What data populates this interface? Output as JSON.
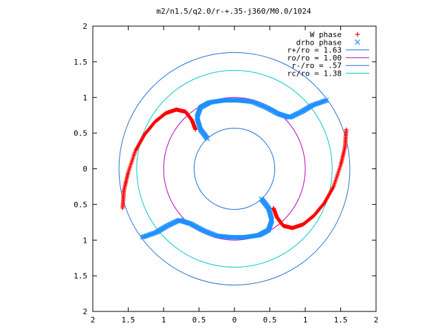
{
  "chart_data": {
    "type": "scatter",
    "title": "m2/n1.5/q2.0/r-+.35-j360/M0.0/1024",
    "xlim": [
      -2,
      2
    ],
    "ylim": [
      -2,
      2
    ],
    "x_tick_labels": [
      "2",
      "1.5",
      "1",
      "0.5",
      "0",
      "0.5",
      "1",
      "1.5",
      "2"
    ],
    "y_tick_labels": [
      "2",
      "1.5",
      "1",
      "0.5",
      "0",
      "0.5",
      "1",
      "1.5",
      "2"
    ],
    "grid": false,
    "legend_position": "top-right",
    "circles": [
      {
        "name": "r+/ro = 1.63",
        "radius": 1.63,
        "color": "#1f6fd0"
      },
      {
        "name": "ro/ro = 1.00",
        "radius": 1.0,
        "color": "#b000b0"
      },
      {
        "name": "r-/ro = .57",
        "radius": 0.57,
        "color": "#1f6fd0"
      },
      {
        "name": "rc/ro = 1.38",
        "radius": 1.38,
        "color": "#00c8c8"
      }
    ],
    "series": [
      {
        "name": "W phase",
        "marker": "+",
        "color": "#ff0000",
        "x": [
          -1.58,
          -1.56,
          -1.5,
          -1.4,
          -1.27,
          -1.12,
          -0.97,
          -0.82,
          -0.69,
          -0.6,
          -0.55,
          1.58,
          1.56,
          1.5,
          1.4,
          1.27,
          1.12,
          0.97,
          0.82,
          0.69,
          0.6,
          0.55
        ],
        "y": [
          -0.55,
          -0.3,
          -0.05,
          0.25,
          0.48,
          0.66,
          0.78,
          0.83,
          0.8,
          0.68,
          0.55,
          0.55,
          0.3,
          0.05,
          -0.25,
          -0.48,
          -0.66,
          -0.78,
          -0.83,
          -0.8,
          -0.68,
          -0.55
        ]
      },
      {
        "name": "drho phase",
        "marker": "x",
        "color": "#1e90ff",
        "x": [
          -0.38,
          -0.48,
          -0.53,
          -0.48,
          -0.35,
          -0.15,
          0.05,
          0.25,
          0.45,
          0.62,
          0.78,
          0.95,
          1.1,
          1.3,
          0.38,
          0.48,
          0.53,
          0.48,
          0.35,
          0.15,
          -0.05,
          -0.25,
          -0.45,
          -0.62,
          -0.78,
          -0.95,
          -1.1,
          -1.3
        ],
        "y": [
          0.42,
          0.55,
          0.72,
          0.86,
          0.93,
          0.96,
          0.96,
          0.94,
          0.86,
          0.77,
          0.72,
          0.8,
          0.89,
          0.96,
          -0.42,
          -0.55,
          -0.72,
          -0.86,
          -0.93,
          -0.96,
          -0.96,
          -0.94,
          -0.86,
          -0.77,
          -0.72,
          -0.8,
          -0.89,
          -0.96
        ]
      }
    ]
  }
}
